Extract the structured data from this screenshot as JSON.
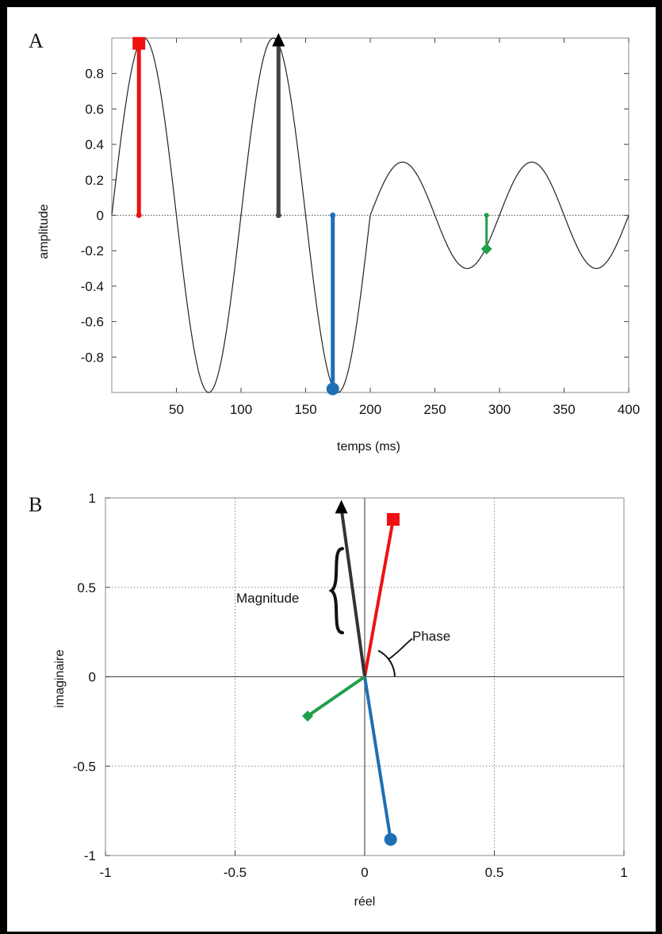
{
  "chart_data": [
    {
      "type": "line",
      "panel_label": "A",
      "xlabel": "temps (ms)",
      "ylabel": "amplitude",
      "xlim": [
        0,
        400
      ],
      "ylim": [
        -1,
        1
      ],
      "xticks": [
        50,
        100,
        150,
        200,
        250,
        300,
        350,
        400
      ],
      "yticks": [
        0.8,
        0.6,
        0.4,
        0.2,
        0,
        -0.2,
        -0.4,
        -0.6,
        -0.8
      ],
      "ytick_labels": [
        "0.8",
        "0.6",
        "0.4",
        "0.2",
        "0",
        "-0.2",
        "-0.4",
        "-0.6",
        "-0.8"
      ],
      "grid": false,
      "zero_line": "dotted",
      "curve": {
        "color": "#222222",
        "segments": [
          {
            "x_from": 0,
            "x_to": 200,
            "amplitude": 1.0,
            "period_ms": 100,
            "peak_at_ms": 25
          },
          {
            "x_from": 200,
            "x_to": 400,
            "amplitude": 0.3,
            "period_ms": 100,
            "peak_at_ms": 225
          }
        ]
      },
      "markers": [
        {
          "name": "red",
          "x": 21,
          "y": 0.97,
          "color": "#ee1111",
          "marker": "square"
        },
        {
          "name": "black",
          "x": 129,
          "y": 0.98,
          "color": "#444444",
          "marker": "triangle"
        },
        {
          "name": "blue",
          "x": 171,
          "y": -0.98,
          "color": "#1f6fb5",
          "marker": "circle"
        },
        {
          "name": "green",
          "x": 290,
          "y": -0.19,
          "color": "#1fa04a",
          "marker": "diamond"
        }
      ]
    },
    {
      "type": "scatter",
      "panel_label": "B",
      "xlabel": "réel",
      "ylabel": "imaginaire",
      "xlim": [
        -1,
        1
      ],
      "ylim": [
        -1,
        1
      ],
      "xticks": [
        -1,
        -0.5,
        0,
        0.5,
        1
      ],
      "xtick_labels": [
        "-1",
        "-0.5",
        "0",
        "0.5",
        "1"
      ],
      "yticks": [
        1,
        0.5,
        0,
        -0.5,
        -1
      ],
      "ytick_labels": [
        "1",
        "0.5",
        "0",
        "-0.5",
        "-1"
      ],
      "grid": true,
      "vectors": [
        {
          "name": "red",
          "x": 0.11,
          "y": 0.88,
          "color": "#ee1111",
          "marker": "square"
        },
        {
          "name": "black",
          "x": -0.09,
          "y": 0.94,
          "color": "#333333",
          "marker": "triangle"
        },
        {
          "name": "blue",
          "x": 0.1,
          "y": -0.91,
          "color": "#1f6fb5",
          "marker": "circle"
        },
        {
          "name": "green",
          "x": -0.22,
          "y": -0.22,
          "color": "#1fa04a",
          "marker": "diamond"
        }
      ],
      "annotations": {
        "magnitude": "Magnitude",
        "phase": "Phase"
      }
    }
  ]
}
